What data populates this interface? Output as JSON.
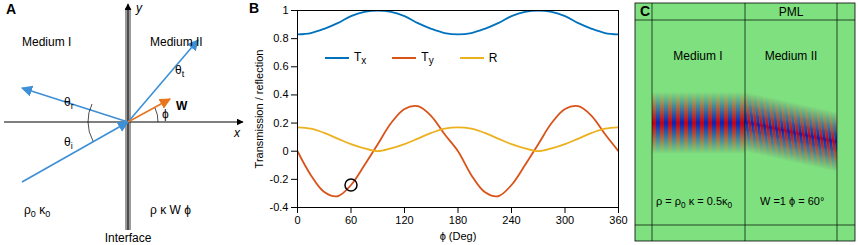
{
  "panel_a": {
    "letter": "A",
    "axis_x": "x",
    "axis_y": "y",
    "medium_1": "Medium I",
    "medium_2": "Medium II",
    "interface": "Interface",
    "theta_r": [
      {
        "t": "θ"
      },
      {
        "t": "r",
        "sub": true
      }
    ],
    "theta_i": [
      {
        "t": "θ"
      },
      {
        "t": "i",
        "sub": true
      }
    ],
    "theta_t": [
      {
        "t": "θ"
      },
      {
        "t": "t",
        "sub": true
      }
    ],
    "phi": [
      {
        "t": "ϕ"
      }
    ],
    "w": [
      {
        "t": "W"
      }
    ],
    "params_1": [
      {
        "t": "ρ"
      },
      {
        "t": "0",
        "sub": true
      },
      {
        "t": "  κ"
      },
      {
        "t": "0",
        "sub": true
      }
    ],
    "params_2": [
      {
        "t": "ρ  κ    W ϕ"
      }
    ]
  },
  "chart_data": {
    "type": "line",
    "letter": "B",
    "x_label": "ϕ (Deg)",
    "y_label": "Transmission / reflection",
    "x": [
      0,
      15,
      30,
      45,
      60,
      75,
      90,
      105,
      120,
      135,
      150,
      165,
      180,
      195,
      210,
      225,
      240,
      255,
      270,
      285,
      300,
      315,
      330,
      345,
      360
    ],
    "series": [
      {
        "name": "Tx",
        "color": "#0072BD",
        "values": [
          0.83,
          0.84,
          0.87,
          0.91,
          0.96,
          0.99,
          1.0,
          0.99,
          0.96,
          0.91,
          0.87,
          0.84,
          0.83,
          0.84,
          0.87,
          0.91,
          0.96,
          0.99,
          1.0,
          0.99,
          0.96,
          0.91,
          0.87,
          0.84,
          0.83
        ]
      },
      {
        "name": "Ty",
        "color": "#D95319",
        "values": [
          0,
          -0.17,
          -0.29,
          -0.32,
          -0.24,
          -0.1,
          0.05,
          0.2,
          0.3,
          0.32,
          0.25,
          0.12,
          0,
          -0.17,
          -0.29,
          -0.32,
          -0.24,
          -0.1,
          0.05,
          0.2,
          0.3,
          0.32,
          0.25,
          0.12,
          0
        ]
      },
      {
        "name": "R",
        "color": "#EDB120",
        "values": [
          0.17,
          0.16,
          0.13,
          0.09,
          0.05,
          0.02,
          0.0,
          0.02,
          0.05,
          0.09,
          0.13,
          0.16,
          0.17,
          0.16,
          0.13,
          0.09,
          0.05,
          0.02,
          0.0,
          0.02,
          0.05,
          0.09,
          0.13,
          0.16,
          0.17
        ]
      }
    ],
    "highlight": {
      "x": 60,
      "y": -0.24,
      "marker": "circle"
    },
    "xlim": [
      0,
      360
    ],
    "xticks": [
      0,
      60,
      120,
      180,
      240,
      300,
      360
    ],
    "ylim": [
      -0.4,
      1
    ],
    "yticks": [
      -0.4,
      -0.2,
      0,
      0.2,
      0.4,
      0.6,
      0.8,
      1
    ],
    "grid": false,
    "legend": "top"
  },
  "panel_c": {
    "letter": "C",
    "pml": "PML",
    "medium_1": "Medium I",
    "medium_2": "Medium II",
    "params_1": [
      {
        "t": "ρ = ρ"
      },
      {
        "t": "0",
        "sub": true
      },
      {
        "t": "  κ = 0.5κ"
      },
      {
        "t": "0",
        "sub": true
      }
    ],
    "params_2": [
      {
        "t": "W =1  ϕ = 60°"
      }
    ]
  }
}
